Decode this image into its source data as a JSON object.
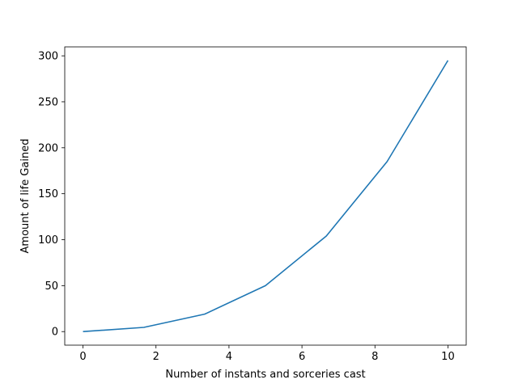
{
  "chart_data": {
    "type": "line",
    "title": "",
    "xlabel": "Number of instants and sorceries cast",
    "ylabel": "Amount of life Gained",
    "xlim": [
      -0.5,
      10.5
    ],
    "ylim": [
      -14.75,
      309.75
    ],
    "xticks": [
      0,
      2,
      4,
      6,
      8,
      10
    ],
    "yticks": [
      0,
      50,
      100,
      150,
      200,
      250,
      300
    ],
    "xtick_labels": [
      "0",
      "2",
      "4",
      "6",
      "8",
      "10"
    ],
    "ytick_labels": [
      "0",
      "50",
      "100",
      "150",
      "200",
      "250",
      "300"
    ],
    "grid": false,
    "line_color": "#1f77b4",
    "series": [
      {
        "x": [
          0,
          1.667,
          3.333,
          5,
          6.667,
          8.333,
          10
        ],
        "values": [
          0,
          4.6,
          19,
          50,
          104,
          185,
          295
        ]
      }
    ]
  }
}
